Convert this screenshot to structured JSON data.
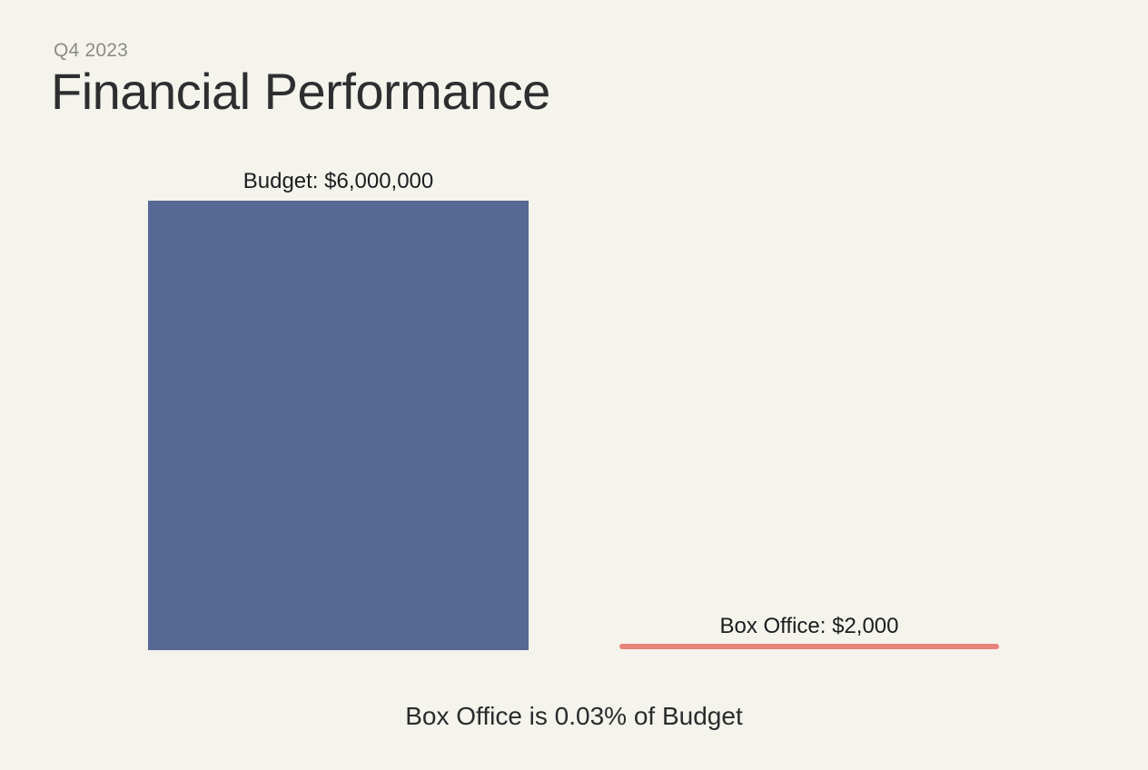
{
  "header": {
    "kicker": "Q4 2023",
    "title": "Financial Performance"
  },
  "chart": {
    "budget_label": "Budget: $6,000,000",
    "box_office_label": "Box Office: $2,000"
  },
  "caption": {
    "text": "Box Office is 0.03% of Budget"
  },
  "colors": {
    "background": "#f4f3ec",
    "budget_bar": "#556994",
    "box_office_bar": "#e8827a",
    "title_text": "#2d2e30",
    "kicker_text": "#8c8b88",
    "label_text": "#1c1d1f"
  },
  "chart_data": {
    "type": "bar",
    "categories": [
      "Budget",
      "Box Office"
    ],
    "values": [
      6000000,
      2000
    ],
    "value_labels": [
      "Budget: $6,000,000",
      "Box Office: $2,000"
    ],
    "series_colors": [
      "#556994",
      "#e8827a"
    ],
    "title": "Financial Performance",
    "subtitle": "Q4 2023",
    "annotation": "Box Office is 0.03% of Budget",
    "orientation": "vertical",
    "grid": false,
    "axes_visible": false,
    "legend": "none",
    "layout_note": "Bar heights proportional to values; Box Office value is so small (0.03% of Budget) it renders as a thin line with labels placed directly above each bar."
  }
}
